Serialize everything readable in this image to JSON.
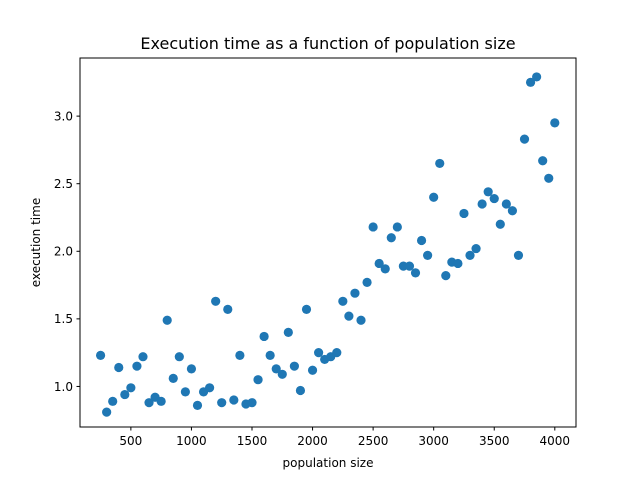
{
  "chart_data": {
    "type": "scatter",
    "title": "Execution time as a function of population size",
    "xlabel": "population size",
    "ylabel": "execution time",
    "xlim": [
      80,
      4175
    ],
    "ylim": [
      0.7,
      3.43
    ],
    "xticks": [
      500,
      1000,
      1500,
      2000,
      2500,
      3000,
      3500,
      4000
    ],
    "yticks": [
      1.0,
      1.5,
      2.0,
      2.5,
      3.0
    ],
    "xtick_labels": [
      "500",
      "1000",
      "1500",
      "2000",
      "2500",
      "3000",
      "3500",
      "4000"
    ],
    "ytick_labels": [
      "1.0",
      "1.5",
      "2.0",
      "2.5",
      "3.0"
    ],
    "grid": false,
    "series": [
      {
        "color": "#1f77b4",
        "points": [
          [
            250,
            1.23
          ],
          [
            300,
            0.81
          ],
          [
            350,
            0.89
          ],
          [
            400,
            1.14
          ],
          [
            450,
            0.94
          ],
          [
            500,
            0.99
          ],
          [
            550,
            1.15
          ],
          [
            600,
            1.22
          ],
          [
            650,
            0.88
          ],
          [
            700,
            0.92
          ],
          [
            750,
            0.89
          ],
          [
            800,
            1.49
          ],
          [
            850,
            1.06
          ],
          [
            900,
            1.22
          ],
          [
            950,
            0.96
          ],
          [
            1000,
            1.13
          ],
          [
            1050,
            0.86
          ],
          [
            1100,
            0.96
          ],
          [
            1150,
            0.99
          ],
          [
            1200,
            1.63
          ],
          [
            1250,
            0.88
          ],
          [
            1300,
            1.57
          ],
          [
            1350,
            0.9
          ],
          [
            1400,
            1.23
          ],
          [
            1450,
            0.87
          ],
          [
            1500,
            0.88
          ],
          [
            1550,
            1.05
          ],
          [
            1600,
            1.37
          ],
          [
            1650,
            1.23
          ],
          [
            1700,
            1.13
          ],
          [
            1750,
            1.09
          ],
          [
            1800,
            1.4
          ],
          [
            1850,
            1.15
          ],
          [
            1900,
            0.97
          ],
          [
            1950,
            1.57
          ],
          [
            2000,
            1.12
          ],
          [
            2050,
            1.25
          ],
          [
            2100,
            1.2
          ],
          [
            2150,
            1.22
          ],
          [
            2200,
            1.25
          ],
          [
            2250,
            1.63
          ],
          [
            2300,
            1.52
          ],
          [
            2350,
            1.69
          ],
          [
            2400,
            1.49
          ],
          [
            2450,
            1.77
          ],
          [
            2500,
            2.18
          ],
          [
            2550,
            1.91
          ],
          [
            2600,
            1.87
          ],
          [
            2650,
            2.1
          ],
          [
            2700,
            2.18
          ],
          [
            2750,
            1.89
          ],
          [
            2800,
            1.89
          ],
          [
            2850,
            1.84
          ],
          [
            2900,
            2.08
          ],
          [
            2950,
            1.97
          ],
          [
            3000,
            2.4
          ],
          [
            3050,
            2.65
          ],
          [
            3100,
            1.82
          ],
          [
            3150,
            1.92
          ],
          [
            3200,
            1.91
          ],
          [
            3250,
            2.28
          ],
          [
            3300,
            1.97
          ],
          [
            3350,
            2.02
          ],
          [
            3400,
            2.35
          ],
          [
            3450,
            2.44
          ],
          [
            3500,
            2.39
          ],
          [
            3550,
            2.2
          ],
          [
            3600,
            2.35
          ],
          [
            3650,
            2.3
          ],
          [
            3700,
            1.97
          ],
          [
            3750,
            2.83
          ],
          [
            3800,
            3.25
          ],
          [
            3850,
            3.29
          ],
          [
            3900,
            2.67
          ],
          [
            3950,
            2.54
          ],
          [
            4000,
            2.95
          ]
        ]
      }
    ]
  }
}
